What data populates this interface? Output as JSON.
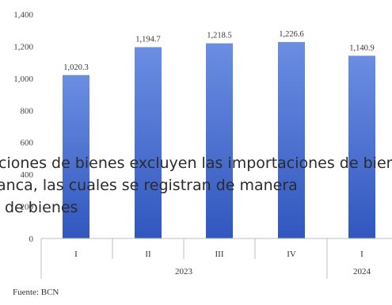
{
  "chart_data": {
    "type": "bar",
    "categories": [
      "I",
      "II",
      "III",
      "IV",
      "I"
    ],
    "groups": [
      {
        "label": "2023",
        "categories": [
          "I",
          "II",
          "III",
          "IV"
        ]
      },
      {
        "label": "2024",
        "categories": [
          "I"
        ]
      }
    ],
    "values": [
      1020.3,
      1194.7,
      1218.5,
      1226.6,
      1140.9
    ],
    "data_labels": [
      "1,020.3",
      "1,194.7",
      "1,218.5",
      "1,226.6",
      "1,140.9"
    ],
    "ylim": [
      0,
      1400
    ],
    "yticks": [
      0,
      200,
      400,
      600,
      800,
      1000,
      1200,
      1400
    ],
    "ytick_labels": [
      "0",
      "200",
      "400",
      "600",
      "800",
      "1,000",
      "1,200",
      "1,400"
    ],
    "bar_color": "#4a6fd0",
    "grid": false,
    "legend": false
  },
  "overlay_text": [
    "ciones de bienes excluyen las importaciones de bienes",
    "anca, las cuales se registran de manera",
    "de bienes"
  ],
  "source": "Fuente: BCN"
}
